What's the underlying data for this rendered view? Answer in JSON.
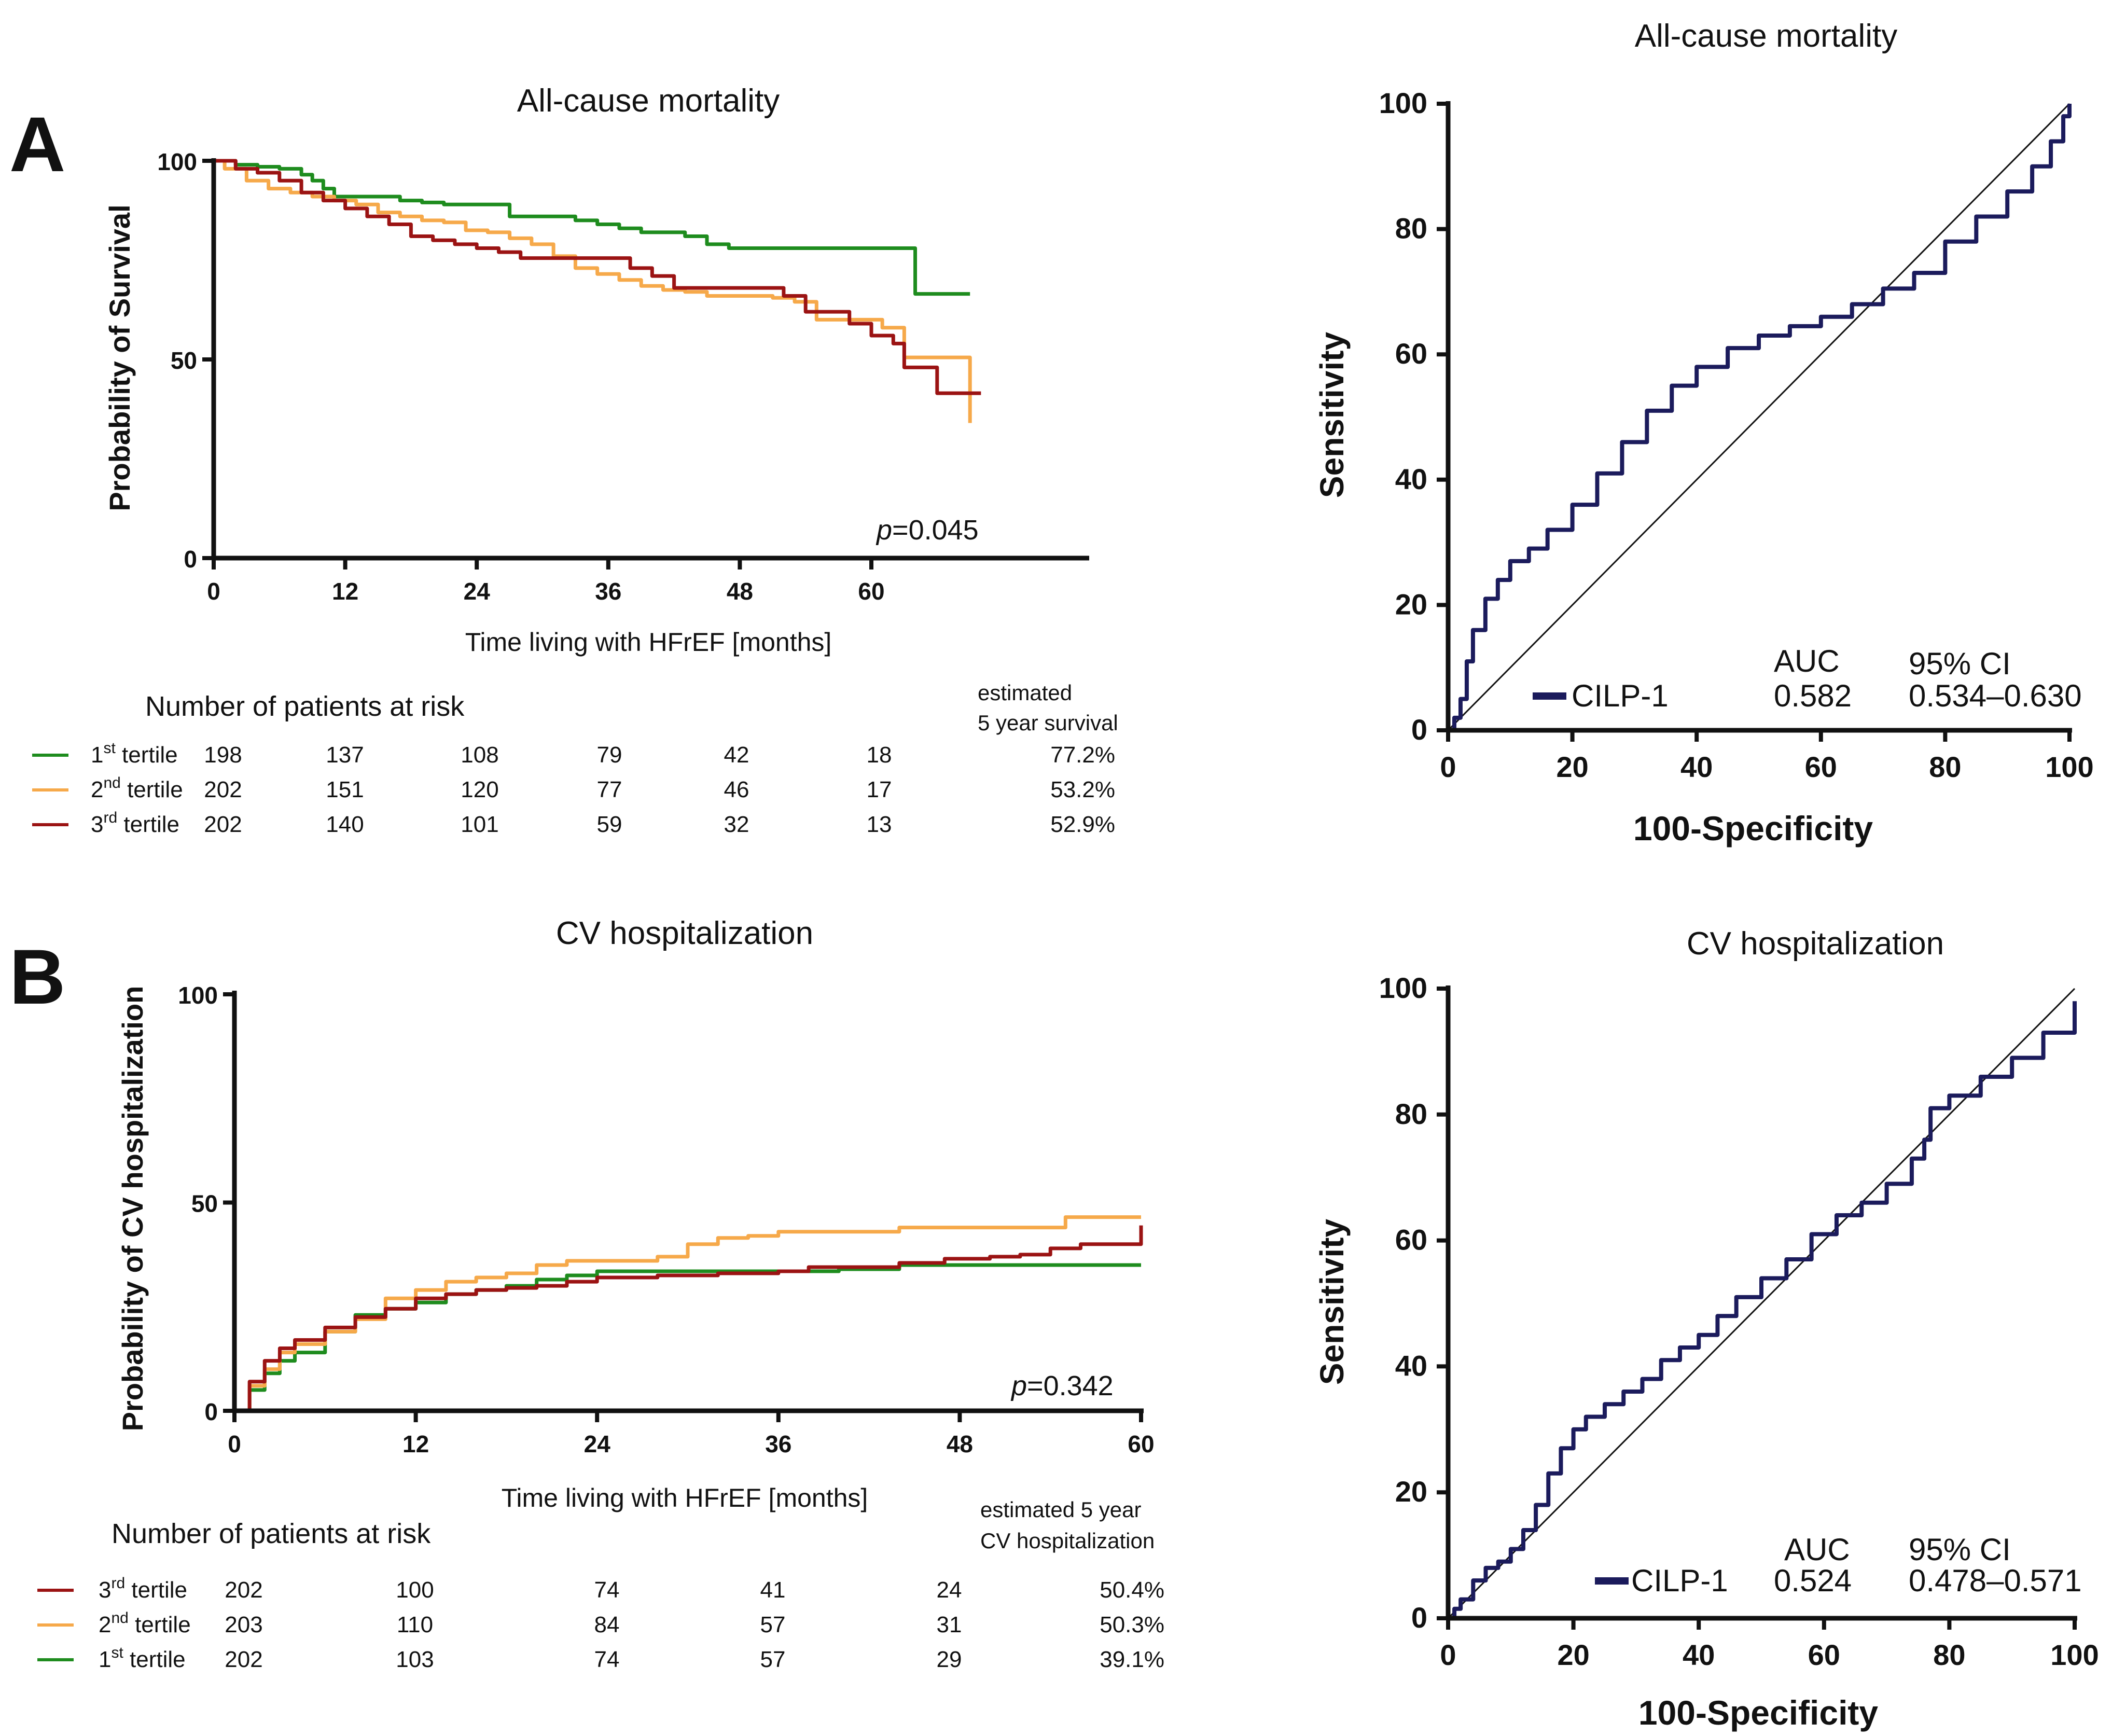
{
  "colors": {
    "tertile1": "#1e8c1e",
    "tertile2": "#f6a94a",
    "tertile3": "#9b1313",
    "roc": "#1b1b5c",
    "axis": "#111111",
    "diagonal": "#111111"
  },
  "chart_data": [
    {
      "panel": "A",
      "type": "line",
      "title": "All-cause mortality",
      "xlabel": "Time living with HFrEF [months]",
      "ylabel": "Probability of Survival",
      "xlim": [
        0,
        80
      ],
      "ylim": [
        0,
        100
      ],
      "xticks": [
        "0",
        "12",
        "24",
        "36",
        "48",
        "60"
      ],
      "xtick_values": [
        0,
        12,
        24,
        36,
        48,
        60
      ],
      "yticks": [
        "0",
        "50",
        "100"
      ],
      "ytick_values": [
        0,
        50,
        100
      ],
      "pvalue_prefix": "p",
      "pvalue_rest": "=0.045",
      "series": [
        {
          "name": "1st tertile",
          "color": "#1e8c1e",
          "x": [
            0,
            2,
            4,
            6,
            8,
            9,
            10,
            11,
            13,
            15,
            17,
            19,
            21,
            23,
            25,
            27,
            29,
            31,
            33,
            35,
            37,
            39,
            41,
            43,
            45,
            47,
            49,
            51,
            60,
            62,
            64,
            66,
            69
          ],
          "y": [
            100,
            99,
            98.5,
            98,
            96.5,
            95,
            93,
            91,
            91,
            91,
            90,
            89.5,
            89,
            89,
            89,
            86,
            86,
            86,
            85,
            84,
            83,
            82,
            82,
            81,
            79,
            78,
            78,
            78,
            78,
            78,
            66.5,
            66.5,
            66.5
          ]
        },
        {
          "name": "2nd tertile",
          "color": "#f6a94a",
          "x": [
            0,
            1,
            3,
            5,
            7,
            9,
            11,
            13,
            15,
            17,
            19,
            21,
            23,
            25,
            27,
            29,
            31,
            33,
            35,
            37,
            39,
            41,
            43,
            45,
            47,
            49,
            51,
            53,
            55,
            57,
            59,
            61,
            63,
            65,
            67,
            68,
            69
          ],
          "y": [
            100,
            98,
            95,
            93,
            92,
            91,
            90,
            89,
            87,
            86,
            85,
            84.5,
            82.5,
            82,
            80.5,
            79,
            76,
            73,
            71.5,
            70,
            68.5,
            67.5,
            67,
            66,
            66,
            66,
            65.5,
            64.5,
            60,
            60,
            60,
            58,
            50.5,
            50.5,
            50.5,
            50.5,
            34
          ]
        },
        {
          "name": "3rd tertile",
          "color": "#9b1313",
          "x": [
            0,
            2,
            4,
            6,
            8,
            10,
            12,
            14,
            16,
            18,
            20,
            22,
            24,
            26,
            28,
            30,
            32,
            34,
            36,
            38,
            40,
            42,
            44,
            46,
            48,
            50,
            52,
            54,
            56,
            58,
            60,
            62,
            63,
            64,
            66,
            68,
            70
          ],
          "y": [
            100,
            98,
            97,
            95,
            92,
            90,
            88,
            86,
            84,
            81,
            80,
            79,
            78,
            77,
            75.5,
            75.5,
            75.5,
            75.5,
            75.5,
            73,
            71,
            68,
            68,
            68,
            68,
            68,
            66,
            62,
            62,
            59,
            56,
            54,
            48,
            48,
            41.5,
            41.5,
            41.5
          ]
        }
      ],
      "risk_table": {
        "title": "Number of patients at risk",
        "header_line1": "estimated",
        "header_line2": "5 year survival",
        "rows": [
          {
            "tertile": "1",
            "sup": "st",
            "label": "tertile",
            "color": "#1e8c1e",
            "counts": [
              "198",
              "137",
              "108",
              "79",
              "42",
              "18"
            ],
            "estimate": "77.2%"
          },
          {
            "tertile": "2",
            "sup": "nd",
            "label": "tertile",
            "color": "#f6a94a",
            "counts": [
              "202",
              "151",
              "120",
              "77",
              "46",
              "17"
            ],
            "estimate": "53.2%"
          },
          {
            "tertile": "3",
            "sup": "rd",
            "label": "tertile",
            "color": "#9b1313",
            "counts": [
              "202",
              "140",
              "101",
              "59",
              "32",
              "13"
            ],
            "estimate": "52.9%"
          }
        ]
      }
    },
    {
      "panel": "A",
      "type": "line",
      "title": "All-cause mortality",
      "xlabel": "100-Specificity",
      "ylabel": "Sensitivity",
      "xlim": [
        0,
        100
      ],
      "ylim": [
        0,
        100
      ],
      "xticks": [
        "0",
        "20",
        "40",
        "60",
        "80",
        "100"
      ],
      "yticks": [
        "0",
        "20",
        "40",
        "60",
        "80",
        "100"
      ],
      "tick_values": [
        0,
        20,
        40,
        60,
        80,
        100
      ],
      "legend": {
        "name": "CILP-1",
        "auc_label": "AUC",
        "auc": "0.582",
        "ci_label": "95% CI",
        "ci": "0.534–0.630"
      },
      "series": [
        {
          "name": "CILP-1",
          "color": "#1b1b5c",
          "x": [
            0,
            1,
            2,
            3,
            4,
            6,
            8,
            10,
            13,
            16,
            20,
            24,
            28,
            32,
            36,
            40,
            45,
            50,
            55,
            60,
            65,
            70,
            75,
            80,
            85,
            90,
            94,
            97,
            99,
            100
          ],
          "y": [
            0,
            2,
            5,
            11,
            16,
            21,
            24,
            27,
            29,
            32,
            36,
            41,
            46,
            51,
            55,
            58,
            61,
            63,
            64.5,
            66,
            68,
            70.5,
            73,
            78,
            82,
            86,
            90,
            94,
            98,
            100
          ]
        }
      ]
    },
    {
      "panel": "B",
      "type": "line",
      "title": "CV hospitalization",
      "xlabel": "Time living with HFrEF [months]",
      "ylabel": "Probability of CV hospitalization",
      "xlim": [
        0,
        60
      ],
      "ylim": [
        0,
        100
      ],
      "xticks": [
        "0",
        "12",
        "24",
        "36",
        "48",
        "60"
      ],
      "xtick_values": [
        0,
        12,
        24,
        36,
        48,
        60
      ],
      "yticks": [
        "0",
        "50",
        "100"
      ],
      "ytick_values": [
        0,
        50,
        100
      ],
      "pvalue_prefix": "p",
      "pvalue_rest": "=0.342",
      "series": [
        {
          "name": "1st tertile",
          "color": "#1e8c1e",
          "x": [
            0,
            1,
            2,
            3,
            4,
            6,
            8,
            10,
            12,
            14,
            16,
            18,
            20,
            22,
            24,
            28,
            32,
            36,
            40,
            44,
            48,
            52,
            56,
            60
          ],
          "y": [
            0,
            5,
            9,
            12,
            14,
            19,
            23,
            24.5,
            26,
            28,
            29,
            30,
            31.5,
            32.5,
            33.5,
            33.5,
            33.5,
            33.5,
            34,
            35,
            35,
            35,
            35,
            35
          ]
        },
        {
          "name": "2nd tertile",
          "color": "#f6a94a",
          "x": [
            0,
            1,
            2,
            3,
            4,
            6,
            8,
            10,
            12,
            14,
            16,
            18,
            20,
            22,
            24,
            26,
            28,
            30,
            32,
            34,
            36,
            40,
            44,
            48,
            52,
            54,
            55,
            60
          ],
          "y": [
            0,
            6,
            10,
            14,
            16,
            19,
            22,
            27,
            29,
            31,
            32,
            33,
            35,
            36,
            36,
            36,
            37,
            40,
            41.5,
            42,
            43,
            43,
            44,
            44,
            44,
            44,
            46.5,
            46.5
          ]
        },
        {
          "name": "3rd tertile",
          "color": "#9b1313",
          "x": [
            0,
            1,
            2,
            3,
            4,
            6,
            8,
            10,
            12,
            14,
            16,
            18,
            20,
            22,
            24,
            28,
            32,
            36,
            38,
            40,
            44,
            47,
            50,
            52,
            54,
            56,
            58,
            59,
            60
          ],
          "y": [
            0,
            7,
            12,
            15,
            17,
            20,
            22.5,
            24.5,
            27,
            28,
            29,
            29.5,
            30,
            31,
            32,
            32.5,
            33,
            33.5,
            34.5,
            34.5,
            35.5,
            36.5,
            37,
            37.5,
            39,
            40,
            40,
            40,
            44.5
          ]
        }
      ],
      "risk_table": {
        "title": "Number of patients at risk",
        "header_line1": "estimated 5 year",
        "header_line2": "CV hospitalization",
        "rows": [
          {
            "tertile": "3",
            "sup": "rd",
            "label": "tertile",
            "color": "#9b1313",
            "counts": [
              "202",
              "100",
              "74",
              "41",
              "24"
            ],
            "estimate": "50.4%"
          },
          {
            "tertile": "2",
            "sup": "nd",
            "label": "tertile",
            "color": "#f6a94a",
            "counts": [
              "203",
              "110",
              "84",
              "57",
              "31"
            ],
            "estimate": "50.3%"
          },
          {
            "tertile": "1",
            "sup": "st",
            "label": "tertile",
            "color": "#1e8c1e",
            "counts": [
              "202",
              "103",
              "74",
              "57",
              "29"
            ],
            "estimate": "39.1%"
          }
        ]
      }
    },
    {
      "panel": "B",
      "type": "line",
      "title": "CV hospitalization",
      "xlabel": "100-Specificity",
      "ylabel": "Sensitivity",
      "xlim": [
        0,
        100
      ],
      "ylim": [
        0,
        100
      ],
      "xticks": [
        "0",
        "20",
        "40",
        "60",
        "80",
        "100"
      ],
      "yticks": [
        "0",
        "20",
        "40",
        "60",
        "80",
        "100"
      ],
      "tick_values": [
        0,
        20,
        40,
        60,
        80,
        100
      ],
      "legend": {
        "name": "CILP-1",
        "auc_label": "AUC",
        "auc": "0.524",
        "ci_label": "95% CI",
        "ci": "0.478–0.571"
      },
      "series": [
        {
          "name": "CILP-1",
          "color": "#1b1b5c",
          "x": [
            0,
            1,
            2,
            4,
            6,
            8,
            10,
            12,
            14,
            16,
            18,
            20,
            22,
            25,
            28,
            31,
            34,
            37,
            40,
            43,
            46,
            50,
            54,
            58,
            62,
            66,
            70,
            74,
            76,
            77,
            80,
            85,
            90,
            95,
            100
          ],
          "y": [
            0,
            1.5,
            3,
            6,
            8,
            9,
            11,
            14,
            18,
            23,
            27,
            30,
            32,
            34,
            36,
            38,
            41,
            43,
            45,
            48,
            51,
            54,
            57,
            61,
            64,
            66,
            69,
            73,
            76,
            81,
            83,
            86,
            89,
            93,
            98
          ]
        }
      ]
    }
  ],
  "labels": {
    "panel_a": "A",
    "panel_b": "B"
  }
}
